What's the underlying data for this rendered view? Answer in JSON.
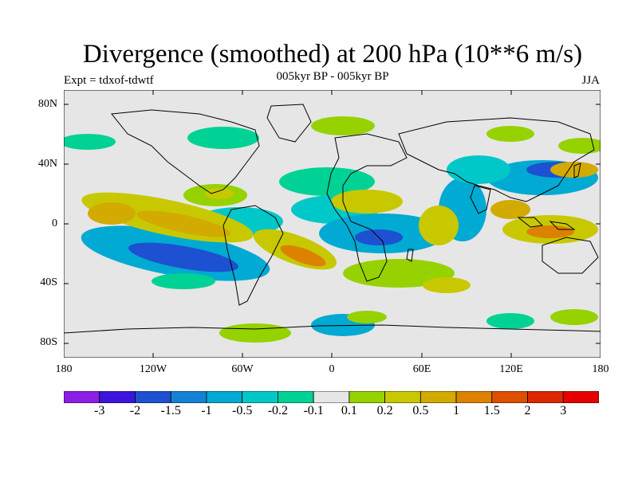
{
  "title": "Divergence (smoothed) at 200 hPa (10**6 m/s)",
  "subtitle": "005kyr BP - 005kyr BP",
  "experiment": "Expt = tdxof-tdwtf",
  "season": "JJA",
  "map": {
    "projection": "cylindrical equidistant",
    "lat_labels": [
      "80N",
      "40N",
      "0",
      "40S",
      "80S"
    ],
    "lon_labels": [
      "180",
      "120W",
      "60W",
      "0",
      "60E",
      "120E",
      "180"
    ],
    "background_color": "#e6e6e6"
  },
  "colorbar": {
    "colors": [
      "#8c1ee6",
      "#3c14dc",
      "#1e50d2",
      "#1482d2",
      "#00aad2",
      "#00c8c8",
      "#00d296",
      "#e6e6e6",
      "#96d200",
      "#c8c800",
      "#d2aa00",
      "#dc8200",
      "#dc5000",
      "#dc2800",
      "#e60000"
    ],
    "labels": [
      "-3",
      "-2",
      "-1.5",
      "-1",
      "-0.5",
      "-0.2",
      "-0.1",
      "0.1",
      "0.2",
      "0.5",
      "1",
      "1.5",
      "2",
      "3"
    ]
  }
}
